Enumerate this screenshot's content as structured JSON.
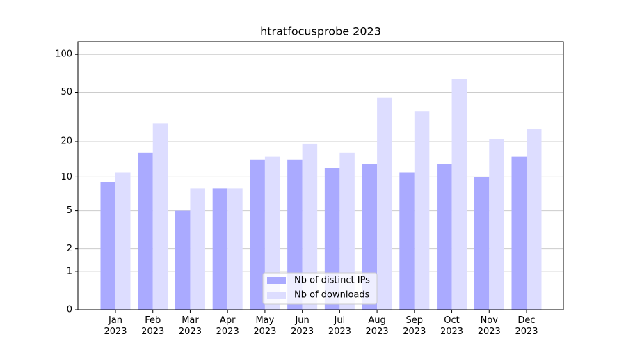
{
  "chart_data": {
    "type": "bar",
    "title": "htratfocusprobe 2023",
    "categories": [
      "Jan\n2023",
      "Feb\n2023",
      "Mar\n2023",
      "Apr\n2023",
      "May\n2023",
      "Jun\n2023",
      "Jul\n2023",
      "Aug\n2023",
      "Sep\n2023",
      "Oct\n2023",
      "Nov\n2023",
      "Dec\n2023"
    ],
    "series": [
      {
        "name": "Nb of distinct IPs",
        "color": "#aaaaff",
        "values": [
          9,
          16,
          5,
          8,
          14,
          14,
          12,
          13,
          11,
          13,
          10,
          15
        ]
      },
      {
        "name": "Nb of downloads",
        "color": "#ddddff",
        "values": [
          11,
          28,
          8,
          8,
          15,
          19,
          16,
          45,
          35,
          64,
          21,
          25
        ]
      }
    ],
    "yscale": "symlog",
    "ylim": [
      0,
      126
    ],
    "yticks": [
      0,
      1,
      2,
      5,
      10,
      20,
      50,
      100
    ],
    "grid": true,
    "legend": "lower center"
  }
}
